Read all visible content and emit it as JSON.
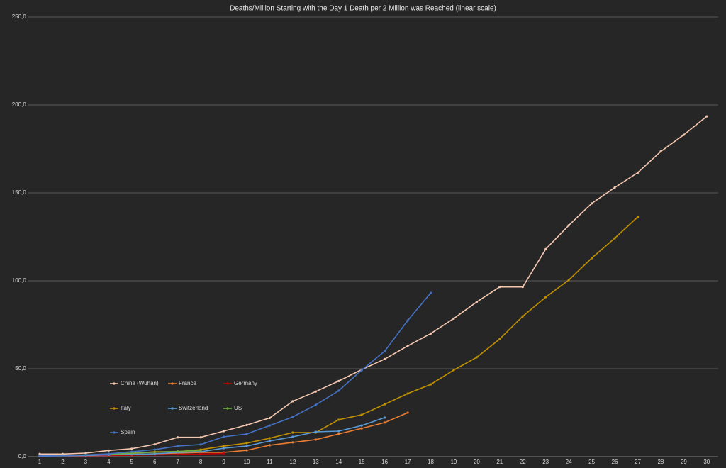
{
  "chart_data": {
    "type": "line",
    "title": "Deaths/Million Starting with the Day 1 Death per 2 Million was Reached (linear scale)",
    "categories": [
      "1",
      "2",
      "3",
      "4",
      "5",
      "6",
      "7",
      "8",
      "9",
      "10",
      "11",
      "12",
      "13",
      "14",
      "15",
      "16",
      "17",
      "18",
      "19",
      "20",
      "21",
      "22",
      "23",
      "24",
      "25",
      "26",
      "27",
      "28",
      "29",
      "30"
    ],
    "ylim": [
      0,
      250
    ],
    "yticks": [
      {
        "value": 0,
        "label": "0,0"
      },
      {
        "value": 50,
        "label": "50,0"
      },
      {
        "value": 100,
        "label": "100,0"
      },
      {
        "value": 150,
        "label": "150,0"
      },
      {
        "value": 200,
        "label": "200,0"
      },
      {
        "value": 250,
        "label": "250,0"
      }
    ],
    "grid": true,
    "series": [
      {
        "name": "China (Wuhan)",
        "color": "#f4c7b0",
        "values": [
          1.5,
          1.5,
          2,
          3.5,
          4.5,
          7,
          11,
          11,
          14.5,
          18,
          22,
          31.5,
          37,
          43,
          49.5,
          55.5,
          63,
          70,
          78.5,
          88,
          96.5,
          96.5,
          118,
          131.5,
          144,
          153,
          161.5,
          173.5,
          183,
          193.5
        ]
      },
      {
        "name": "France",
        "color": "#ed7d31",
        "values": [
          0.5,
          0.6,
          0.8,
          1,
          1.3,
          1.6,
          2,
          2.4,
          2.4,
          3.6,
          6.5,
          8.1,
          9.7,
          12.9,
          16.1,
          19.4,
          25,
          null,
          null,
          null,
          null,
          null,
          null,
          null,
          null,
          null,
          null,
          null,
          null,
          null
        ]
      },
      {
        "name": "Germany",
        "color": "#c00000",
        "values": [
          0.3,
          0.4,
          0.5,
          0.6,
          0.8,
          1,
          1.2,
          1.5,
          1.8,
          null,
          null,
          null,
          null,
          null,
          null,
          null,
          null,
          null,
          null,
          null,
          null,
          null,
          null,
          null,
          null,
          null,
          null,
          null,
          null,
          null
        ]
      },
      {
        "name": "Italy",
        "color": "#bf9000",
        "values": [
          0.5,
          0.6,
          0.8,
          1.2,
          1.8,
          2.8,
          2.8,
          4,
          6,
          7.7,
          10.5,
          13.7,
          13.7,
          21,
          23.8,
          29.8,
          35.9,
          41.1,
          49.2,
          56.5,
          66.9,
          79.8,
          90.7,
          100.4,
          112.9,
          124.2,
          136.3,
          null,
          null,
          null
        ]
      },
      {
        "name": "Switzerland",
        "color": "#5b9bd5",
        "values": [
          0.3,
          0.5,
          0.7,
          1,
          1.3,
          1.6,
          2.4,
          2.8,
          4.8,
          6,
          8.9,
          11.3,
          14.1,
          14.5,
          17.7,
          22.2,
          null,
          null,
          null,
          null,
          null,
          null,
          null,
          null,
          null,
          null,
          null,
          null,
          null,
          null
        ]
      },
      {
        "name": "US",
        "color": "#70ad47",
        "values": [
          0.5,
          0.7,
          1,
          1.3,
          2,
          2.5,
          3,
          3.5,
          null,
          null,
          null,
          null,
          null,
          null,
          null,
          null,
          null,
          null,
          null,
          null,
          null,
          null,
          null,
          null,
          null,
          null,
          null,
          null,
          null,
          null
        ]
      },
      {
        "name": "Spain",
        "color": "#4472c4",
        "values": [
          0.5,
          0.5,
          1,
          1.6,
          2.8,
          4,
          6,
          6.9,
          11.3,
          12.9,
          17.7,
          22.6,
          29.4,
          37.5,
          49.2,
          60,
          77.4,
          93.1,
          null,
          null,
          null,
          null,
          null,
          null,
          null,
          null,
          null,
          null,
          null,
          null
        ]
      }
    ]
  }
}
